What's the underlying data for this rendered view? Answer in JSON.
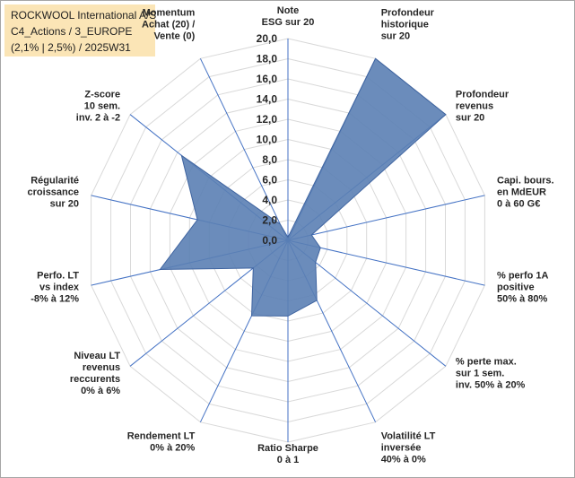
{
  "title": {
    "lines": [
      "ROCKWOOL International A/S",
      "C4_Actions / 3_EUROPE",
      "(2,1% | 2,5%) / 2025W31"
    ]
  },
  "colors": {
    "fill": "#5b7fb4",
    "stroke": "#3f64a0",
    "grid": "#d9d9d9",
    "spoke": "#4472c4",
    "title_bg": "#fbe5b6"
  },
  "chart_data": {
    "type": "radar",
    "rlim": [
      0,
      20
    ],
    "ticks": [
      "0,0",
      "2,0",
      "4,0",
      "6,0",
      "8,0",
      "10,0",
      "12,0",
      "14,0",
      "16,0",
      "18,0",
      "20,0"
    ],
    "tick_values": [
      0,
      2,
      4,
      6,
      8,
      10,
      12,
      14,
      16,
      18,
      20
    ],
    "grid": true,
    "categories": [
      [
        "Note",
        "ESG sur 20"
      ],
      [
        "Profondeur",
        "historique",
        "sur 20"
      ],
      [
        "Profondeur",
        "revenus",
        "sur 20"
      ],
      [
        "Capi. bours.",
        "en MdEUR",
        "0 à 60 G€"
      ],
      [
        "% perfo 1A",
        "positive",
        "50% à 80%"
      ],
      [
        "% perte max.",
        "sur 1 sem.",
        "inv. 50% à 20%"
      ],
      [
        "Volatilité LT",
        "inversée",
        "40% à 0%"
      ],
      [
        "Ratio Sharpe",
        "0 à 1"
      ],
      [
        "Rendement LT",
        "0% à 20%"
      ],
      [
        "Niveau LT",
        "revenus",
        "reccurents",
        "0% à 6%"
      ],
      [
        "Perfo. LT",
        "vs index",
        "-8% à 12%"
      ],
      [
        "Régularité",
        "croissance",
        "sur 20"
      ],
      [
        "Z-score",
        "10 sem.",
        "inv. 2 à -2"
      ],
      [
        "Momentum",
        "Achat (20) /",
        "Vente (0)"
      ]
    ],
    "values": [
      0.3,
      20.0,
      20.0,
      2.4,
      3.3,
      3.5,
      6.6,
      7.5,
      8.3,
      4.4,
      13.0,
      9.2,
      13.5,
      1.8
    ]
  }
}
